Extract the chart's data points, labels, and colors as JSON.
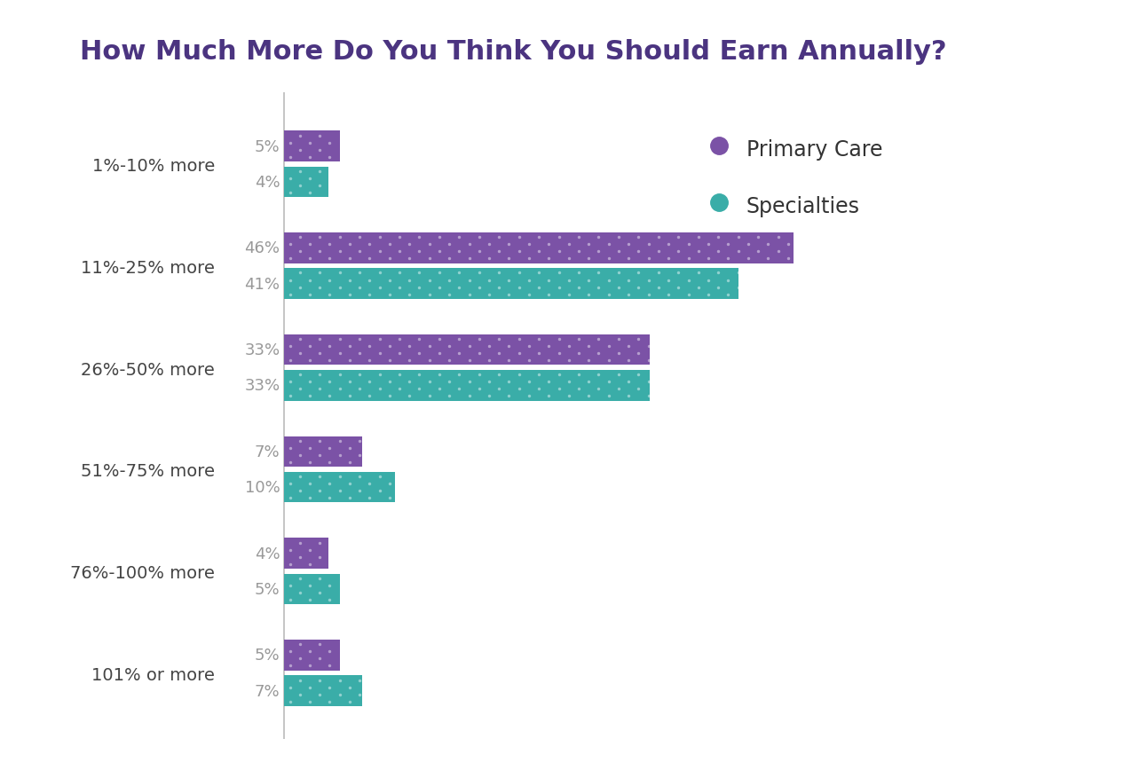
{
  "title": "How Much More Do You Think You Should Earn Annually?",
  "categories": [
    "1%-10% more",
    "11%-25% more",
    "26%-50% more",
    "51%-75% more",
    "76%-100% more",
    "101% or more"
  ],
  "primary_care": [
    5,
    46,
    33,
    7,
    4,
    5
  ],
  "specialties": [
    4,
    41,
    33,
    10,
    5,
    7
  ],
  "primary_care_color": "#7B52A6",
  "specialties_color": "#3AADA8",
  "title_color": "#4B3480",
  "label_color": "#999999",
  "category_color": "#444444",
  "background_color": "#FFFFFF",
  "bar_height": 0.3,
  "bar_gap": 0.05,
  "legend_labels": [
    "Primary Care",
    "Specialties"
  ],
  "title_fontsize": 22,
  "label_fontsize": 13,
  "category_fontsize": 14
}
